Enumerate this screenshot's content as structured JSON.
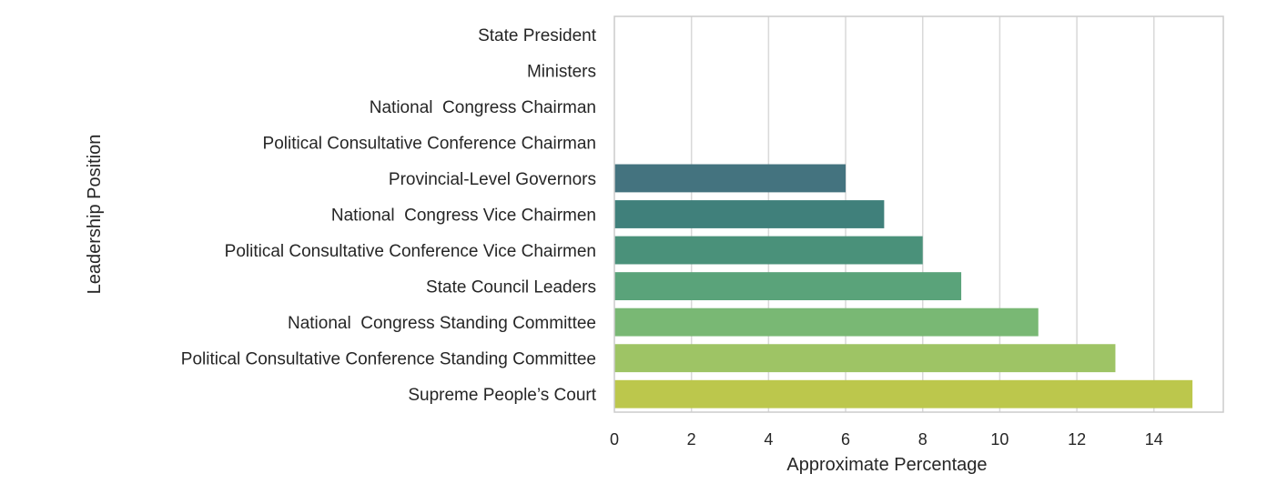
{
  "chart_data": {
    "type": "bar",
    "orientation": "horizontal",
    "title": "",
    "xlabel": "Approximate Percentage",
    "ylabel": "Leadership Position",
    "xlim": [
      0,
      15.8
    ],
    "xticks": [
      0,
      2,
      4,
      6,
      8,
      10,
      12,
      14
    ],
    "grid": "vertical",
    "legend": "none",
    "categories": [
      "State President",
      "Ministers",
      "National  Congress Chairman",
      "Political Consultative Conference Chairman",
      "Provincial-Level Governors",
      "National  Congress Vice Chairmen",
      "Political Consultative Conference Vice Chairmen",
      "State Council Leaders",
      "National  Congress Standing Committee",
      "Political Consultative Conference Standing Committee",
      "Supreme People’s Court"
    ],
    "values": [
      0,
      0,
      0,
      0,
      6,
      7,
      8,
      9,
      11,
      13,
      15
    ],
    "colors": [
      "#440154",
      "#482475",
      "#414487",
      "#355f8d",
      "#44737f",
      "#40807b",
      "#4a917a",
      "#5aa37a",
      "#79b874",
      "#9ec465",
      "#bcc74c"
    ]
  }
}
